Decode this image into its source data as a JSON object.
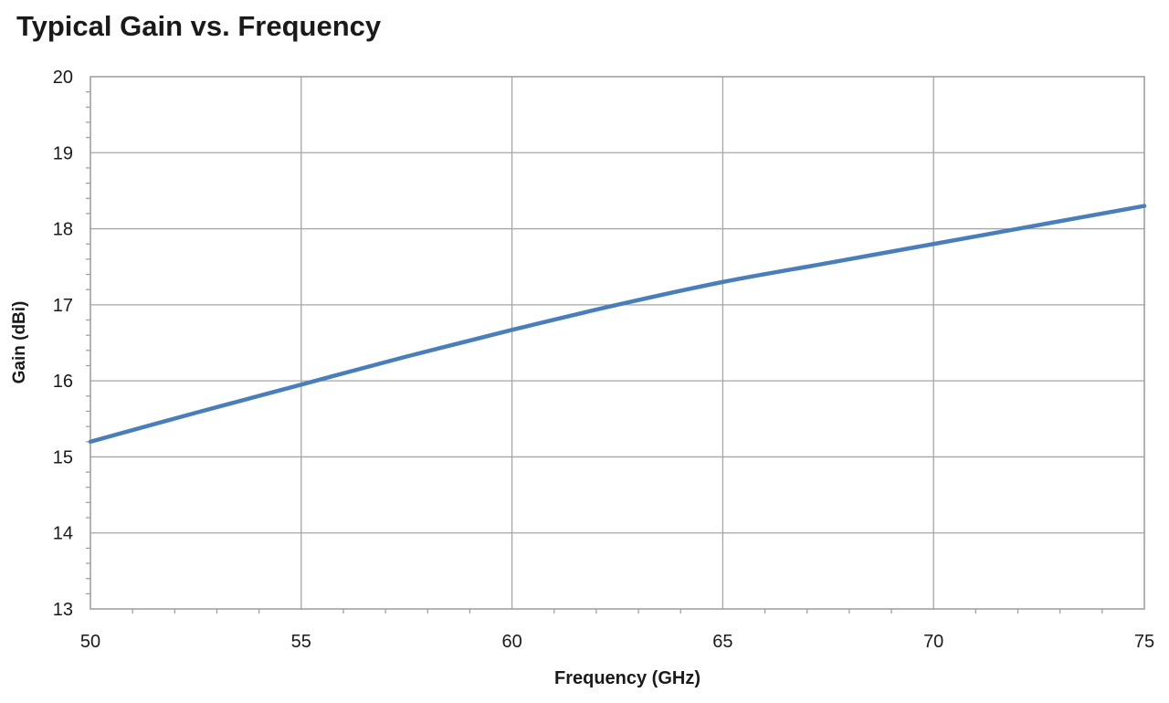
{
  "chart_data": {
    "type": "line",
    "title": "Typical Gain vs. Frequency",
    "xlabel": "Frequency (GHz)",
    "ylabel": "Gain (dBi)",
    "xlim": [
      50,
      75
    ],
    "ylim": [
      13,
      20
    ],
    "xticks": [
      "50",
      "55",
      "60",
      "65",
      "70",
      "75"
    ],
    "yticks": [
      "13",
      "14",
      "15",
      "16",
      "17",
      "18",
      "19",
      "20"
    ],
    "grid": true,
    "series": [
      {
        "color": "#4a7ebb",
        "x": [
          50,
          52.5,
          55,
          57.5,
          60,
          62.5,
          65,
          67.5,
          70,
          72.5,
          75
        ],
        "y": [
          15.2,
          15.58,
          15.95,
          16.32,
          16.67,
          17.0,
          17.3,
          17.55,
          17.8,
          18.05,
          18.3
        ]
      }
    ]
  }
}
